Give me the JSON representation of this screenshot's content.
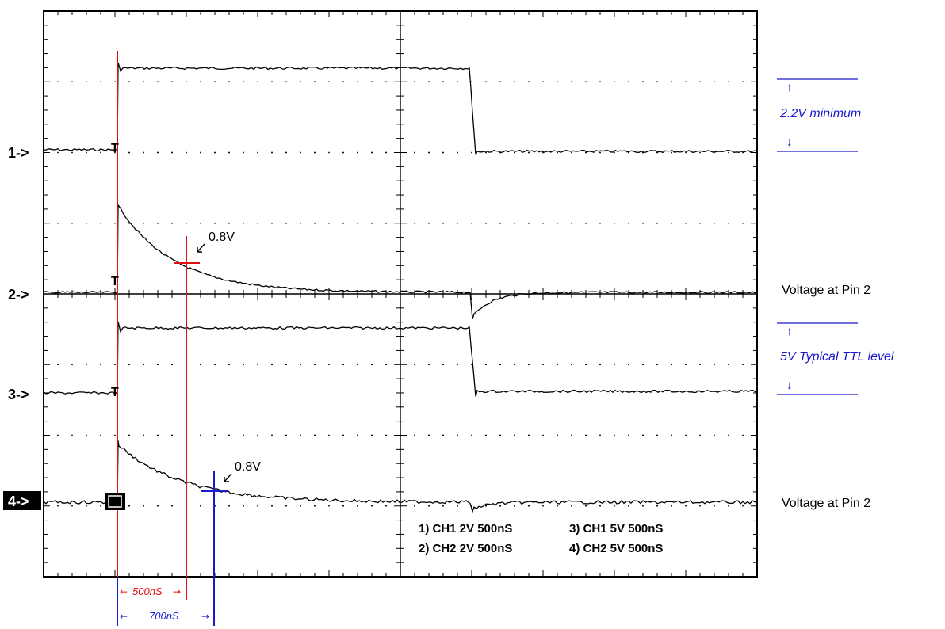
{
  "chart_data": {
    "type": "line",
    "title": "",
    "xlabel": "",
    "ylabel": "",
    "grid": true,
    "divisions": {
      "x": 10,
      "y": 8
    },
    "channel_markers": [
      "1->",
      "2->",
      "3->",
      "4->"
    ],
    "trigger_marker": "T",
    "channel_settings": [
      "1) CH1 2V 500nS",
      "3) CH1 5V 500nS",
      "2) CH2 2V 500nS",
      "4) CH2 5V 500nS"
    ],
    "annotations": {
      "threshold_1": "0.8V",
      "threshold_2": "0.8V",
      "interval_1": "500nS",
      "interval_2": "700nS",
      "arrow_left": "←",
      "arrow_right": "→",
      "arrow_up": "↑",
      "arrow_down": "↓"
    },
    "series": [
      {
        "description_channel": 1,
        "volts_per_div": 2,
        "time_per_div_ns": 500
      },
      {
        "description_channel": 2,
        "volts_per_div": 2,
        "time_per_div_ns": 500
      },
      {
        "description_channel": 3,
        "volts_per_div": 5,
        "time_per_div_ns": 500
      },
      {
        "description_channel": 4,
        "volts_per_div": 5,
        "time_per_div_ns": 500
      }
    ]
  },
  "side_labels": {
    "minimum_label": "2.2V minimum",
    "pin2_label_1": "Voltage at Pin 2",
    "ttl_label": "5V Typical TTL level",
    "pin2_label_2": "Voltage at Pin 2"
  },
  "colors": {
    "trace": "#000000",
    "red_marker": "#e01010",
    "blue_marker": "#1a1acc",
    "grid": "#000000"
  }
}
